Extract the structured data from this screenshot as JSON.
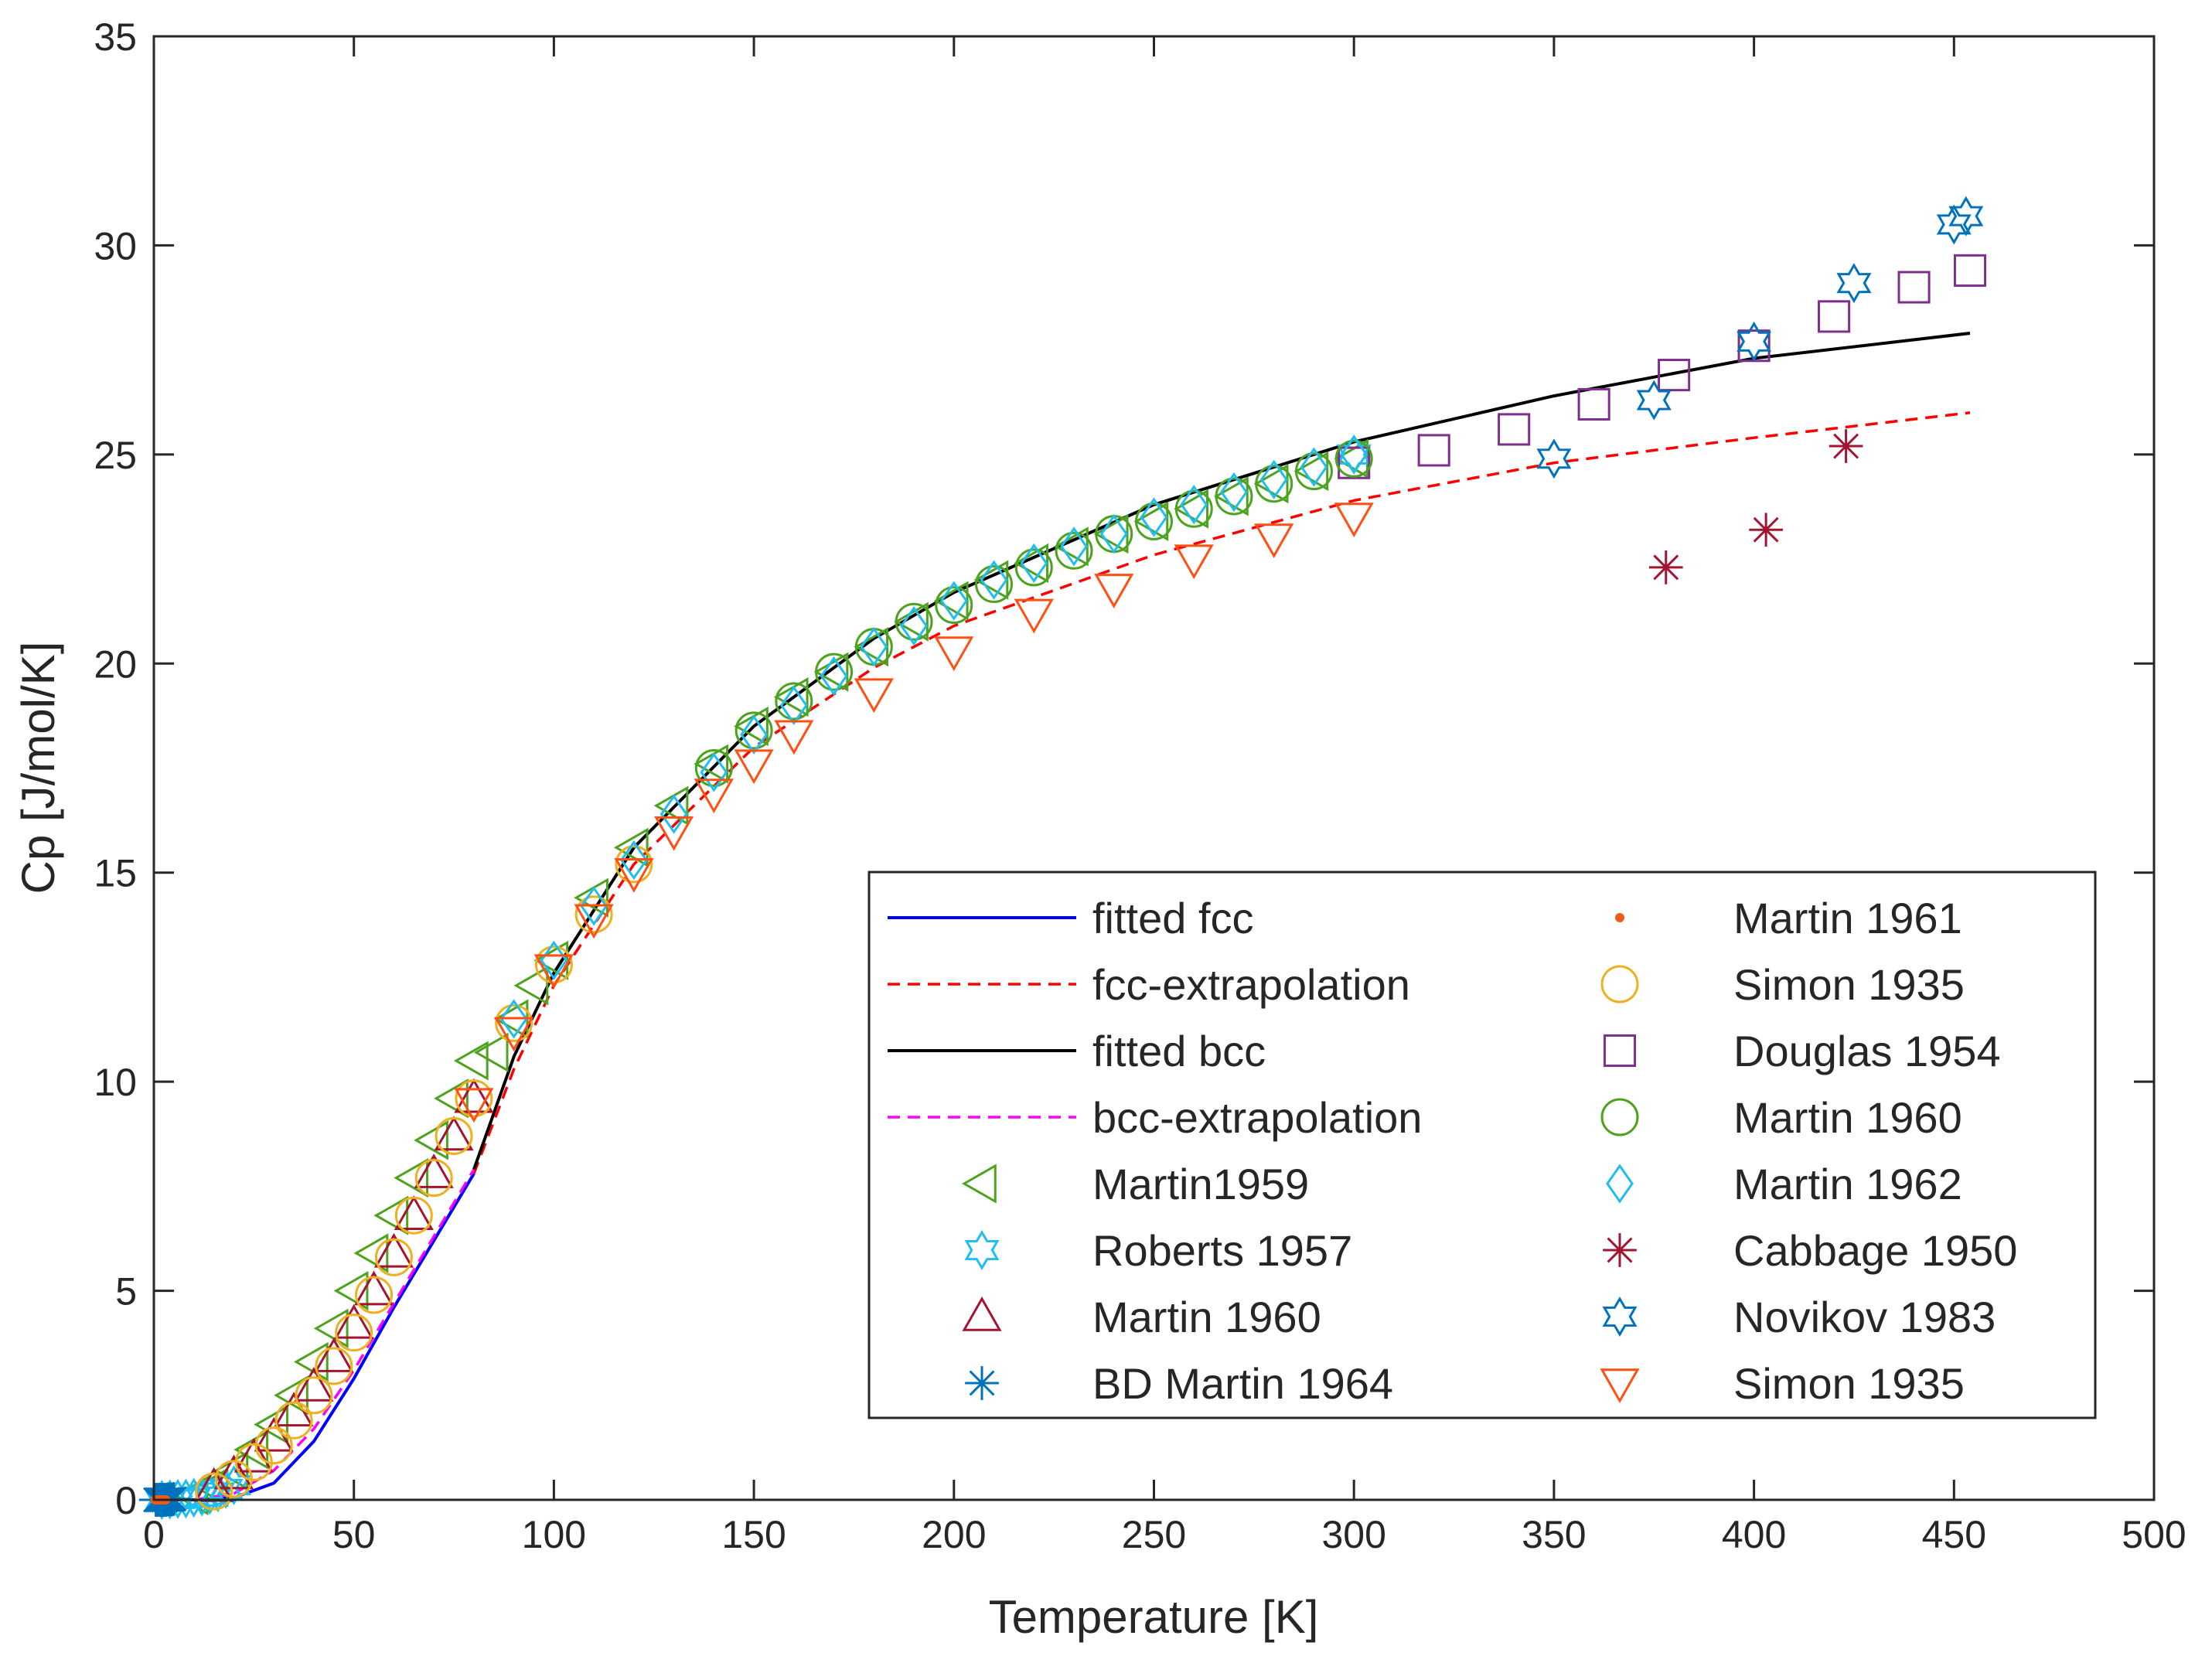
{
  "chart_data": {
    "type": "scatter",
    "title": "",
    "xlabel": "Temperature [K]",
    "ylabel": "Cp [J/mol/K]",
    "xlim": [
      0,
      500
    ],
    "ylim": [
      0,
      35
    ],
    "x_ticks": [
      0,
      50,
      100,
      150,
      200,
      250,
      300,
      350,
      400,
      450,
      500
    ],
    "y_ticks": [
      0,
      5,
      10,
      15,
      20,
      25,
      30,
      35
    ],
    "grid": false,
    "legend_position": "bottom-right",
    "series": [
      {
        "name": "fitted fcc",
        "kind": "line",
        "dash": "solid",
        "color": "#0000FF",
        "x": [
          0,
          10,
          20,
          30,
          40,
          50,
          60,
          70,
          80
        ],
        "y": [
          0,
          0,
          0.05,
          0.4,
          1.4,
          2.9,
          4.6,
          6.2,
          7.8
        ]
      },
      {
        "name": "fcc-extrapolation",
        "kind": "line",
        "dash": "dashed",
        "color": "#FF0000",
        "x": [
          80,
          90,
          100,
          120,
          150,
          180,
          200,
          250,
          300,
          350,
          400,
          454
        ],
        "y": [
          7.8,
          10.3,
          12.3,
          15.2,
          18.0,
          19.9,
          20.9,
          22.6,
          23.9,
          24.8,
          25.4,
          26.0
        ]
      },
      {
        "name": "fitted bcc",
        "kind": "line",
        "dash": "solid",
        "color": "#000000",
        "x": [
          80,
          90,
          100,
          120,
          150,
          180,
          200,
          250,
          300,
          350,
          400,
          454
        ],
        "y": [
          7.9,
          10.6,
          12.6,
          15.6,
          18.5,
          20.6,
          21.7,
          23.8,
          25.3,
          26.4,
          27.3,
          27.9
        ]
      },
      {
        "name": "bcc-extrapolation",
        "kind": "line",
        "dash": "dashed",
        "color": "#FF00FF",
        "x": [
          0,
          10,
          20,
          30,
          40,
          50,
          60,
          70,
          80
        ],
        "y": [
          0,
          0,
          0.15,
          0.7,
          1.7,
          3.1,
          4.7,
          6.3,
          7.9
        ]
      },
      {
        "name": "Martin1959",
        "kind": "marker",
        "marker": "triangle-left",
        "color": "#4DA31F",
        "x": [
          10,
          15,
          20,
          25,
          30,
          35,
          40,
          45,
          50,
          55,
          60,
          65,
          70,
          75,
          80,
          85,
          90,
          95,
          100,
          110,
          120,
          130,
          140,
          150,
          160,
          170,
          180,
          190,
          200,
          210,
          220,
          230,
          240,
          250,
          260,
          270,
          280,
          290,
          300
        ],
        "y": [
          0.1,
          0.3,
          0.7,
          1.2,
          1.8,
          2.5,
          3.3,
          4.1,
          5.0,
          5.9,
          6.8,
          7.7,
          8.6,
          9.6,
          10.5,
          10.7,
          11.5,
          12.3,
          12.9,
          14.4,
          15.6,
          16.6,
          17.6,
          18.5,
          19.2,
          19.8,
          20.4,
          21.0,
          21.5,
          22.0,
          22.4,
          22.8,
          23.1,
          23.4,
          23.7,
          24.0,
          24.3,
          24.6,
          24.9
        ]
      },
      {
        "name": "Roberts 1957",
        "kind": "marker",
        "marker": "hexagram",
        "color": "#1EBFF0",
        "x": [
          2,
          4,
          6,
          8,
          10,
          12,
          14,
          16,
          18,
          20,
          300
        ],
        "y": [
          0.0,
          0.01,
          0.02,
          0.03,
          0.05,
          0.08,
          0.12,
          0.18,
          0.26,
          0.35,
          25.0
        ]
      },
      {
        "name": "Martin 1960",
        "kind": "marker",
        "marker": "triangle-up",
        "color": "#A2142F",
        "x": [
          15,
          20,
          25,
          30,
          35,
          40,
          45,
          50,
          55,
          60,
          65,
          70,
          75,
          80
        ],
        "y": [
          0.3,
          0.6,
          1.0,
          1.5,
          2.1,
          2.7,
          3.4,
          4.2,
          5.0,
          5.9,
          6.8,
          7.8,
          8.7,
          9.6
        ]
      },
      {
        "name": "BD Martin 1964",
        "kind": "marker",
        "marker": "asterisk",
        "color": "#0072BD",
        "x": [
          0.5,
          1,
          1.5,
          2,
          2.5,
          3,
          3.5,
          4,
          4.5,
          5
        ],
        "y": [
          0,
          0,
          0,
          0,
          0,
          0,
          0.01,
          0.01,
          0.01,
          0.02
        ]
      },
      {
        "name": "Martin 1961",
        "kind": "marker",
        "marker": "dot",
        "color": "#EE5A1C",
        "x": [
          0.3,
          0.6,
          1.0,
          1.4,
          1.8,
          2.2,
          2.6,
          3.0
        ],
        "y": [
          0,
          0,
          0,
          0,
          0,
          0,
          0,
          0
        ]
      },
      {
        "name": "Simon 1935",
        "kind": "marker",
        "marker": "circle",
        "color": "#EDB120",
        "x": [
          15,
          20,
          25,
          30,
          35,
          40,
          45,
          50,
          55,
          60,
          65,
          70,
          75,
          80,
          90,
          100,
          110,
          120
        ],
        "y": [
          0.2,
          0.5,
          0.9,
          1.3,
          1.9,
          2.5,
          3.2,
          4.0,
          4.9,
          5.8,
          6.8,
          7.7,
          8.7,
          9.6,
          11.4,
          12.8,
          14.0,
          15.2
        ]
      },
      {
        "name": "Douglas 1954",
        "kind": "marker",
        "marker": "square",
        "color": "#7E2F8E",
        "x": [
          300,
          320,
          340,
          360,
          380,
          400,
          420,
          440,
          454
        ],
        "y": [
          24.8,
          25.1,
          25.6,
          26.2,
          26.9,
          27.6,
          28.3,
          29.0,
          29.4
        ]
      },
      {
        "name": "Martin 1960",
        "kind": "marker",
        "marker": "circle",
        "color": "#4DA31F",
        "x": [
          140,
          150,
          160,
          170,
          180,
          190,
          200,
          210,
          220,
          230,
          240,
          250,
          260,
          270,
          280,
          290,
          300
        ],
        "y": [
          17.5,
          18.4,
          19.1,
          19.8,
          20.4,
          21.0,
          21.4,
          21.9,
          22.3,
          22.7,
          23.1,
          23.4,
          23.7,
          24.0,
          24.3,
          24.6,
          24.9
        ]
      },
      {
        "name": "Martin 1962",
        "kind": "marker",
        "marker": "diamond",
        "color": "#1EBFF0",
        "x": [
          90,
          100,
          110,
          120,
          130,
          140,
          150,
          160,
          170,
          180,
          190,
          200,
          210,
          220,
          230,
          240,
          250,
          260,
          270,
          280,
          290,
          300
        ],
        "y": [
          11.5,
          12.9,
          14.2,
          15.3,
          16.4,
          17.4,
          18.3,
          19.0,
          19.7,
          20.4,
          20.9,
          21.5,
          22.0,
          22.4,
          22.8,
          23.1,
          23.5,
          23.8,
          24.1,
          24.4,
          24.7,
          25.0
        ]
      },
      {
        "name": "Cabbage 1950",
        "kind": "marker",
        "marker": "asterisk",
        "color": "#A2142F",
        "x": [
          378,
          403,
          423
        ],
        "y": [
          22.3,
          23.2,
          25.2
        ]
      },
      {
        "name": "Novikov 1983",
        "kind": "marker",
        "marker": "hexagram",
        "color": "#0072BD",
        "x": [
          350,
          375,
          400,
          425,
          450,
          453
        ],
        "y": [
          24.9,
          26.3,
          27.7,
          29.1,
          30.5,
          30.7
        ]
      },
      {
        "name": "Simon 1935",
        "kind": "marker",
        "marker": "triangle-down",
        "color": "#FF4F12",
        "x": [
          80,
          90,
          100,
          110,
          120,
          130,
          140,
          150,
          160,
          180,
          200,
          220,
          240,
          260,
          280,
          300
        ],
        "y": [
          9.5,
          11.2,
          12.7,
          13.9,
          15.0,
          16.0,
          16.9,
          17.6,
          18.3,
          19.3,
          20.3,
          21.2,
          21.8,
          22.5,
          23.0,
          23.5
        ]
      }
    ]
  }
}
